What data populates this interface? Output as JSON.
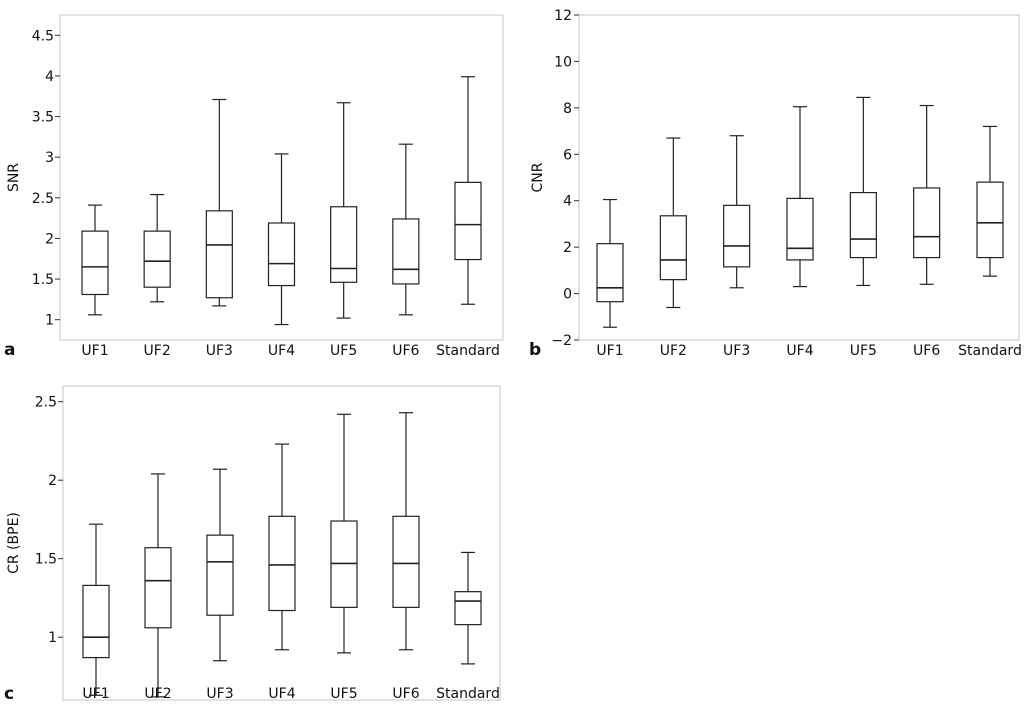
{
  "chart_data": [
    {
      "type": "box",
      "panel": "a",
      "title": "",
      "xlabel": "",
      "ylabel": "SNR",
      "ylim": [
        0.75,
        4.75
      ],
      "yticks": [
        1,
        1.5,
        2,
        2.5,
        3,
        3.5,
        4,
        4.5
      ],
      "ytick_labels": [
        "1",
        "1.5",
        "2",
        "2.5",
        "3",
        "3.5",
        "4",
        "4.5"
      ],
      "grid": false,
      "categories": [
        "UF1",
        "UF2",
        "UF3",
        "UF4",
        "UF5",
        "UF6",
        "Standard"
      ],
      "boxes": [
        {
          "min": 1.06,
          "q1": 1.31,
          "median": 1.65,
          "q3": 2.09,
          "max": 2.41
        },
        {
          "min": 1.22,
          "q1": 1.4,
          "median": 1.72,
          "q3": 2.09,
          "max": 2.54
        },
        {
          "min": 1.17,
          "q1": 1.27,
          "median": 1.92,
          "q3": 2.34,
          "max": 3.71
        },
        {
          "min": 0.94,
          "q1": 1.42,
          "median": 1.69,
          "q3": 2.19,
          "max": 3.04
        },
        {
          "min": 1.02,
          "q1": 1.46,
          "median": 1.63,
          "q3": 2.39,
          "max": 3.67
        },
        {
          "min": 1.06,
          "q1": 1.44,
          "median": 1.62,
          "q3": 2.24,
          "max": 3.16
        },
        {
          "min": 1.19,
          "q1": 1.74,
          "median": 2.17,
          "q3": 2.69,
          "max": 3.99
        }
      ]
    },
    {
      "type": "box",
      "panel": "b",
      "title": "",
      "xlabel": "",
      "ylabel": "CNR",
      "ylim": [
        -2,
        12
      ],
      "yticks": [
        -2,
        0,
        2,
        4,
        6,
        8,
        10,
        12
      ],
      "ytick_labels": [
        "−2",
        "0",
        "2",
        "4",
        "6",
        "8",
        "10",
        "12"
      ],
      "grid": false,
      "categories": [
        "UF1",
        "UF2",
        "UF3",
        "UF4",
        "UF5",
        "UF6",
        "Standard"
      ],
      "boxes": [
        {
          "min": -1.45,
          "q1": -0.35,
          "median": 0.25,
          "q3": 2.15,
          "max": 4.05
        },
        {
          "min": -0.6,
          "q1": 0.6,
          "median": 1.45,
          "q3": 3.35,
          "max": 6.7
        },
        {
          "min": 0.25,
          "q1": 1.15,
          "median": 2.05,
          "q3": 3.8,
          "max": 6.8
        },
        {
          "min": 0.3,
          "q1": 1.45,
          "median": 1.95,
          "q3": 4.1,
          "max": 8.05
        },
        {
          "min": 0.35,
          "q1": 1.55,
          "median": 2.35,
          "q3": 4.35,
          "max": 8.45
        },
        {
          "min": 0.4,
          "q1": 1.55,
          "median": 2.45,
          "q3": 4.55,
          "max": 8.1
        },
        {
          "min": 0.75,
          "q1": 1.55,
          "median": 3.05,
          "q3": 4.8,
          "max": 7.2
        }
      ]
    },
    {
      "type": "box",
      "panel": "c",
      "title": "",
      "xlabel": "",
      "ylabel": "CR (BPE)",
      "ylim": [
        0.6,
        2.6
      ],
      "yticks": [
        1,
        1.5,
        2,
        2.5
      ],
      "ytick_labels": [
        "1",
        "1.5",
        "2",
        "2.5"
      ],
      "grid": false,
      "categories": [
        "UF1",
        "UF2",
        "UF3",
        "UF4",
        "UF5",
        "UF6",
        "Standard"
      ],
      "boxes": [
        {
          "min": 0.63,
          "q1": 0.87,
          "median": 1.0,
          "q3": 1.33,
          "max": 1.72
        },
        {
          "min": 0.62,
          "q1": 1.06,
          "median": 1.36,
          "q3": 1.57,
          "max": 2.04
        },
        {
          "min": 0.85,
          "q1": 1.14,
          "median": 1.48,
          "q3": 1.65,
          "max": 2.07
        },
        {
          "min": 0.92,
          "q1": 1.17,
          "median": 1.46,
          "q3": 1.77,
          "max": 2.23
        },
        {
          "min": 0.9,
          "q1": 1.19,
          "median": 1.47,
          "q3": 1.74,
          "max": 2.42
        },
        {
          "min": 0.92,
          "q1": 1.19,
          "median": 1.47,
          "q3": 1.77,
          "max": 2.43
        },
        {
          "min": 0.83,
          "q1": 1.08,
          "median": 1.23,
          "q3": 1.29,
          "max": 1.54
        }
      ]
    }
  ]
}
